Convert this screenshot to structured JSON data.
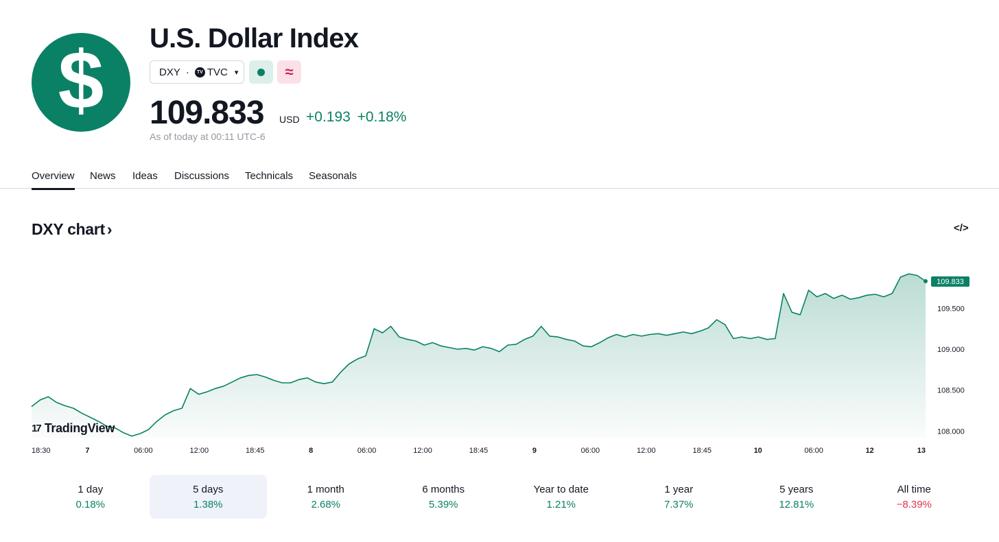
{
  "header": {
    "logo_glyph": "$",
    "title": "U.S. Dollar Index",
    "symbol": "DXY",
    "separator": "·",
    "exchange_logo": "TV",
    "exchange": "TVC",
    "market_open_icon": "green-dot-icon",
    "delayed_icon": "approx-icon",
    "delayed_glyph": "≈",
    "price": "109.833",
    "currency": "USD",
    "change_abs": "+0.193",
    "change_pct": "+0.18%",
    "as_of": "As of today at 00:11 UTC-6",
    "colors": {
      "brand": "#0a8164",
      "positive": "#0a8164",
      "negative": "#e0354a"
    }
  },
  "tabs": [
    {
      "label": "Overview",
      "active": true
    },
    {
      "label": "News"
    },
    {
      "label": "Ideas"
    },
    {
      "label": "Discussions"
    },
    {
      "label": "Technicals"
    },
    {
      "label": "Seasonals"
    }
  ],
  "chart_section": {
    "title": "DXY chart",
    "title_arrow": "›",
    "embed_icon": "code-embed-icon",
    "embed_glyph": "</>",
    "watermark_mark": "17",
    "watermark": "TradingView"
  },
  "chart_data": {
    "type": "area",
    "color": "#0a8164",
    "grid": false,
    "x_ticks": [
      "18:30",
      "7",
      "06:00",
      "12:00",
      "18:45",
      "8",
      "06:00",
      "12:00",
      "18:45",
      "9",
      "06:00",
      "12:00",
      "18:45",
      "10",
      "06:00",
      "12",
      "13"
    ],
    "bold_x_ticks": [
      "7",
      "8",
      "9",
      "10",
      "12",
      "13"
    ],
    "y_ticks": [
      "109.500",
      "109.000",
      "108.500",
      "108.000"
    ],
    "ylim": [
      107.92,
      110.08
    ],
    "last_value_label": "109.833",
    "series": [
      {
        "values": [
          108.3,
          108.38,
          108.42,
          108.35,
          108.31,
          108.28,
          108.22,
          108.17,
          108.12,
          108.06,
          108.04,
          107.98,
          107.94,
          107.97,
          108.02,
          108.12,
          108.2,
          108.25,
          108.28,
          108.52,
          108.45,
          108.48,
          108.52,
          108.55,
          108.6,
          108.65,
          108.68,
          108.69,
          108.66,
          108.62,
          108.59,
          108.59,
          108.63,
          108.65,
          108.6,
          108.58,
          108.6,
          108.72,
          108.82,
          108.88,
          108.92,
          109.25,
          109.2,
          109.28,
          109.15,
          109.12,
          109.1,
          109.05,
          109.08,
          109.04,
          109.02,
          109.0,
          109.01,
          108.99,
          109.03,
          109.01,
          108.97,
          109.05,
          109.06,
          109.12,
          109.16,
          109.28,
          109.16,
          109.15,
          109.12,
          109.1,
          109.04,
          109.03,
          109.08,
          109.14,
          109.18,
          109.15,
          109.18,
          109.16,
          109.18,
          109.19,
          109.17,
          109.19,
          109.21,
          109.19,
          109.22,
          109.26,
          109.36,
          109.3,
          109.13,
          109.15,
          109.13,
          109.15,
          109.12,
          109.13,
          109.68,
          109.45,
          109.42,
          109.72,
          109.64,
          109.68,
          109.62,
          109.66,
          109.61,
          109.63,
          109.66,
          109.67,
          109.64,
          109.68,
          109.88,
          109.92,
          109.9,
          109.83
        ]
      }
    ]
  },
  "periods": [
    {
      "label": "1 day",
      "value": "0.18%",
      "negative": false
    },
    {
      "label": "5 days",
      "value": "1.38%",
      "negative": false,
      "active": true
    },
    {
      "label": "1 month",
      "value": "2.68%",
      "negative": false
    },
    {
      "label": "6 months",
      "value": "5.39%",
      "negative": false
    },
    {
      "label": "Year to date",
      "value": "1.21%",
      "negative": false
    },
    {
      "label": "1 year",
      "value": "7.37%",
      "negative": false
    },
    {
      "label": "5 years",
      "value": "12.81%",
      "negative": false
    },
    {
      "label": "All time",
      "value": "−8.39%",
      "negative": true
    }
  ]
}
